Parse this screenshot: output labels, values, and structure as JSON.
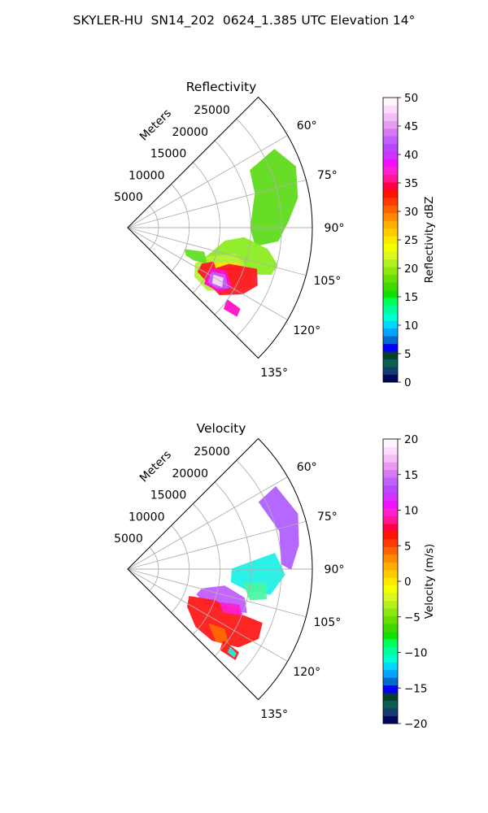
{
  "figure": {
    "title": "SKYLER-HU  SN14_202  0624_1.385 UTC Elevation 14°"
  },
  "chart_data": [
    {
      "type": "heatmap",
      "subtype": "polar-sector",
      "title": "Reflectivity",
      "field": "reflectivity",
      "radial_label": "Meters",
      "radial_ticks": [
        5000,
        10000,
        15000,
        20000,
        25000
      ],
      "rlim": [
        0,
        30000
      ],
      "angle_ticks": [
        "60°",
        "75°",
        "90°",
        "105°",
        "120°",
        "135°"
      ],
      "angle_tick_values": [
        60,
        75,
        90,
        105,
        120,
        135
      ],
      "theta_range": [
        45,
        135
      ],
      "grid": true,
      "colorbar": {
        "label": "Reflectivity dBZ",
        "range": [
          0,
          50
        ],
        "ticks": [
          "0",
          "5",
          "10",
          "15",
          "20",
          "25",
          "30",
          "35",
          "40",
          "45",
          "50"
        ],
        "colors": [
          "#02045e",
          "#153a6e",
          "#0a5e52",
          "#0b3d2f",
          "#0000ff",
          "#006ad0",
          "#01a4ff",
          "#00d7ff",
          "#00ffd0",
          "#00ff9a",
          "#00ff55",
          "#12e000",
          "#41d800",
          "#66df00",
          "#8de80f",
          "#b2f020",
          "#d8f820",
          "#f4ff00",
          "#ffe800",
          "#ffcc00",
          "#ffad00",
          "#ff8a00",
          "#ff6200",
          "#ff3a00",
          "#ff1200",
          "#ff0040",
          "#ff1690",
          "#ff20d0",
          "#f010ff",
          "#d033ff",
          "#b847ff",
          "#c060ff",
          "#d878f2",
          "#e79cf1",
          "#f3bdf8",
          "#fcdcfc",
          "#fff4ff"
        ]
      },
      "regions": [
        {
          "color": "#5fdc1c",
          "points": [
            [
              22000,
              65
            ],
            [
              27000,
              62
            ],
            [
              29000,
              70
            ],
            [
              28000,
              80
            ],
            [
              26000,
              88
            ],
            [
              24500,
              95
            ],
            [
              21000,
              98
            ],
            [
              20000,
              90
            ],
            [
              21500,
              75
            ]
          ]
        },
        {
          "color": "#8ded21",
          "points": [
            [
              16000,
              98
            ],
            [
              19000,
              95
            ],
            [
              23000,
              99
            ],
            [
              25000,
              104
            ],
            [
              24500,
              108
            ],
            [
              20000,
              112
            ],
            [
              17000,
              118
            ],
            [
              14500,
              121
            ],
            [
              13000,
              116
            ]
          ]
        },
        {
          "color": "#b6f238",
          "points": [
            [
              14000,
              110
            ],
            [
              18000,
              104
            ],
            [
              21500,
              110
            ],
            [
              22000,
              116
            ],
            [
              19000,
              122
            ],
            [
              16500,
              128
            ],
            [
              13500,
              126
            ],
            [
              12500,
              118
            ]
          ]
        },
        {
          "color": "#ffe300",
          "points": [
            [
              15500,
              112
            ],
            [
              19000,
              108
            ],
            [
              21000,
              114
            ],
            [
              19500,
              120
            ],
            [
              16500,
              123
            ],
            [
              14500,
              118
            ]
          ]
        },
        {
          "color": "#ff8c00",
          "points": [
            [
              16000,
              114
            ],
            [
              19500,
              110
            ],
            [
              20500,
              116
            ],
            [
              18000,
              121
            ],
            [
              15500,
              120
            ]
          ]
        },
        {
          "color": "#ff1a24",
          "points": [
            [
              17500,
              110
            ],
            [
              22000,
              108
            ],
            [
              23000,
              114
            ],
            [
              21500,
              120
            ],
            [
              18500,
              126
            ],
            [
              15500,
              124
            ],
            [
              15000,
              118
            ]
          ]
        },
        {
          "color": "#ff1a24",
          "points": [
            [
              13500,
              116
            ],
            [
              15000,
              112
            ],
            [
              17000,
              120
            ],
            [
              15500,
              124
            ],
            [
              13500,
              122
            ]
          ]
        },
        {
          "color": "#ff10c8",
          "points": [
            [
              15000,
              116
            ],
            [
              17500,
              114
            ],
            [
              19500,
              120
            ],
            [
              18000,
              125
            ],
            [
              15500,
              126
            ]
          ]
        },
        {
          "color": "#c45cff",
          "points": [
            [
              15500,
              118
            ],
            [
              17500,
              116
            ],
            [
              19000,
              121
            ],
            [
              17500,
              124
            ],
            [
              15800,
              124
            ]
          ]
        },
        {
          "color": "#f6dcf8",
          "points": [
            [
              16000,
              119
            ],
            [
              17500,
              118
            ],
            [
              18000,
              122
            ],
            [
              16500,
              123
            ]
          ]
        },
        {
          "color": "#ff10c8",
          "points": [
            [
              20000,
              126
            ],
            [
              22500,
              126
            ],
            [
              22800,
              129
            ],
            [
              20500,
              130
            ]
          ]
        },
        {
          "color": "#63e025",
          "points": [
            [
              10000,
              111
            ],
            [
              13000,
              108
            ],
            [
              14000,
              114
            ],
            [
              12000,
              116
            ],
            [
              10500,
              115
            ]
          ]
        }
      ]
    },
    {
      "type": "heatmap",
      "subtype": "polar-sector",
      "title": "Velocity",
      "field": "velocity",
      "radial_label": "Meters",
      "radial_ticks": [
        5000,
        10000,
        15000,
        20000,
        25000
      ],
      "rlim": [
        0,
        30000
      ],
      "angle_ticks": [
        "60°",
        "75°",
        "90°",
        "105°",
        "120°",
        "135°"
      ],
      "angle_tick_values": [
        60,
        75,
        90,
        105,
        120,
        135
      ],
      "theta_range": [
        45,
        135
      ],
      "grid": true,
      "colorbar": {
        "label": "Velocity (m/s)",
        "range": [
          -20,
          20
        ],
        "ticks": [
          "−20",
          "−15",
          "−10",
          "−5",
          "0",
          "5",
          "10",
          "15",
          "20"
        ],
        "colors": [
          "#02045e",
          "#153a6e",
          "#0a5e52",
          "#0b3d2f",
          "#0000ff",
          "#006ad0",
          "#01a4ff",
          "#00d7ff",
          "#00ffd0",
          "#00ff9a",
          "#00ff55",
          "#12e000",
          "#41d800",
          "#66df00",
          "#8de80f",
          "#b2f020",
          "#d8f820",
          "#f4ff00",
          "#ffe800",
          "#ffcc00",
          "#ffad00",
          "#ff8a00",
          "#ff6200",
          "#ff3a00",
          "#ff1200",
          "#ff0040",
          "#ff1690",
          "#ff20d0",
          "#f010ff",
          "#d033ff",
          "#b847ff",
          "#c060ff",
          "#d878f2",
          "#e79cf1",
          "#f3bdf8",
          "#fcdcfc",
          "#fff4ff"
        ]
      },
      "regions": [
        {
          "color": "#b060ff",
          "points": [
            [
              24000,
              63
            ],
            [
              27500,
              61
            ],
            [
              29000,
              72
            ],
            [
              28000,
              82
            ],
            [
              26500,
              90
            ],
            [
              25000,
              88
            ],
            [
              25500,
              76
            ]
          ]
        },
        {
          "color": "#22f0e6",
          "points": [
            [
              17000,
              90
            ],
            [
              21000,
              86
            ],
            [
              24000,
              84
            ],
            [
              25500,
              92
            ],
            [
              23500,
              100
            ],
            [
              20000,
              100
            ],
            [
              17000,
              97
            ]
          ]
        },
        {
          "color": "#4bf7a0",
          "points": [
            [
              19000,
              97
            ],
            [
              22500,
              96
            ],
            [
              23000,
              102
            ],
            [
              20500,
              104
            ]
          ]
        },
        {
          "color": "#c45cff",
          "points": [
            [
              12500,
              105
            ],
            [
              16000,
              100
            ],
            [
              19500,
              104
            ],
            [
              20500,
              110
            ],
            [
              17000,
              113
            ],
            [
              14000,
              114
            ],
            [
              12000,
              110
            ]
          ]
        },
        {
          "color": "#ff1a1a",
          "points": [
            [
              11000,
              114
            ],
            [
              15000,
              110
            ],
            [
              20000,
              112
            ],
            [
              23500,
              112
            ],
            [
              24000,
              118
            ],
            [
              22000,
              125
            ],
            [
              18000,
              130
            ],
            [
              14500,
              130
            ],
            [
              11500,
              122
            ]
          ]
        },
        {
          "color": "#ff6a00",
          "points": [
            [
              16000,
              124
            ],
            [
              18500,
              122
            ],
            [
              20500,
              127
            ],
            [
              18500,
              129
            ]
          ]
        },
        {
          "color": "#ff1a1a",
          "points": [
            [
              19500,
              127
            ],
            [
              22500,
              127
            ],
            [
              22800,
              130
            ],
            [
              20000,
              131
            ]
          ]
        },
        {
          "color": "#19f0e6",
          "points": [
            [
              21000,
              127.5
            ],
            [
              22300,
              128
            ],
            [
              22400,
              129.5
            ],
            [
              21200,
              129.5
            ]
          ]
        },
        {
          "color": "#ff20d0",
          "points": [
            [
              16000,
              110
            ],
            [
              19000,
              108
            ],
            [
              20000,
              112
            ],
            [
              17000,
              114
            ]
          ]
        }
      ]
    }
  ]
}
